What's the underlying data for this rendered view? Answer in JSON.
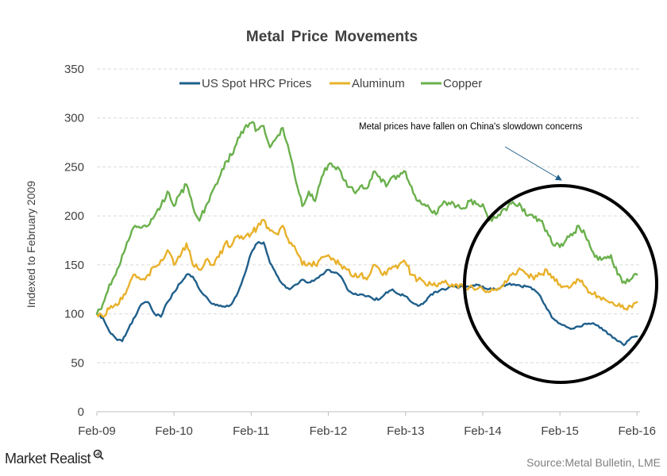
{
  "chart_data": {
    "type": "line",
    "title": "Metal Price Movements",
    "ylabel": "Indexed to February 2009",
    "xlabel": "",
    "ylim": [
      0,
      350
    ],
    "yticks": [
      0,
      50,
      100,
      150,
      200,
      250,
      300,
      350
    ],
    "xlim": [
      "2009-02-01",
      "2016-02-15"
    ],
    "xticks": [
      {
        "label": "Feb-09",
        "date": "2009-02-01"
      },
      {
        "label": "Feb-10",
        "date": "2010-02-01"
      },
      {
        "label": "Feb-11",
        "date": "2011-02-01"
      },
      {
        "label": "Feb-12",
        "date": "2012-02-01"
      },
      {
        "label": "Feb-13",
        "date": "2013-02-01"
      },
      {
        "label": "Feb-14",
        "date": "2014-02-01"
      },
      {
        "label": "Feb-15",
        "date": "2015-02-01"
      },
      {
        "label": "Feb-16",
        "date": "2016-02-01"
      }
    ],
    "grid": "horizontal-dashed",
    "legend_position": "top-center",
    "series": [
      {
        "name": "US Spot HRC Prices",
        "color": "#1f5f8b",
        "points": [
          [
            "2009-02-01",
            100
          ],
          [
            "2009-03-01",
            96
          ],
          [
            "2009-04-01",
            82
          ],
          [
            "2009-05-01",
            75
          ],
          [
            "2009-06-01",
            72
          ],
          [
            "2009-07-01",
            85
          ],
          [
            "2009-08-01",
            97
          ],
          [
            "2009-09-01",
            110
          ],
          [
            "2009-10-01",
            112
          ],
          [
            "2009-11-01",
            100
          ],
          [
            "2009-12-01",
            97
          ],
          [
            "2010-01-01",
            112
          ],
          [
            "2010-02-01",
            122
          ],
          [
            "2010-03-01",
            131
          ],
          [
            "2010-04-01",
            140
          ],
          [
            "2010-05-01",
            138
          ],
          [
            "2010-06-01",
            125
          ],
          [
            "2010-07-01",
            118
          ],
          [
            "2010-08-01",
            110
          ],
          [
            "2010-09-01",
            108
          ],
          [
            "2010-10-01",
            107
          ],
          [
            "2010-11-01",
            110
          ],
          [
            "2010-12-01",
            122
          ],
          [
            "2011-01-01",
            140
          ],
          [
            "2011-02-01",
            162
          ],
          [
            "2011-03-01",
            172
          ],
          [
            "2011-04-01",
            173
          ],
          [
            "2011-05-01",
            152
          ],
          [
            "2011-06-01",
            140
          ],
          [
            "2011-07-01",
            130
          ],
          [
            "2011-08-01",
            125
          ],
          [
            "2011-09-01",
            130
          ],
          [
            "2011-10-01",
            135
          ],
          [
            "2011-11-01",
            132
          ],
          [
            "2011-12-01",
            135
          ],
          [
            "2012-01-01",
            140
          ],
          [
            "2012-02-01",
            145
          ],
          [
            "2012-03-01",
            142
          ],
          [
            "2012-04-01",
            138
          ],
          [
            "2012-05-01",
            125
          ],
          [
            "2012-06-01",
            120
          ],
          [
            "2012-07-01",
            120
          ],
          [
            "2012-08-01",
            118
          ],
          [
            "2012-09-01",
            115
          ],
          [
            "2012-10-01",
            115
          ],
          [
            "2012-11-01",
            122
          ],
          [
            "2012-12-01",
            125
          ],
          [
            "2013-01-01",
            120
          ],
          [
            "2013-02-01",
            118
          ],
          [
            "2013-03-01",
            112
          ],
          [
            "2013-04-01",
            108
          ],
          [
            "2013-05-01",
            112
          ],
          [
            "2013-06-01",
            120
          ],
          [
            "2013-07-01",
            122
          ],
          [
            "2013-08-01",
            125
          ],
          [
            "2013-09-01",
            128
          ],
          [
            "2013-10-01",
            127
          ],
          [
            "2013-11-01",
            128
          ],
          [
            "2013-12-01",
            127
          ],
          [
            "2014-01-01",
            130
          ],
          [
            "2014-02-01",
            128
          ],
          [
            "2014-03-01",
            125
          ],
          [
            "2014-04-01",
            125
          ],
          [
            "2014-05-01",
            128
          ],
          [
            "2014-06-01",
            130
          ],
          [
            "2014-07-01",
            130
          ],
          [
            "2014-08-01",
            128
          ],
          [
            "2014-09-01",
            128
          ],
          [
            "2014-10-01",
            125
          ],
          [
            "2014-11-01",
            118
          ],
          [
            "2014-12-01",
            105
          ],
          [
            "2015-01-01",
            95
          ],
          [
            "2015-02-01",
            90
          ],
          [
            "2015-03-01",
            87
          ],
          [
            "2015-04-01",
            85
          ],
          [
            "2015-05-01",
            87
          ],
          [
            "2015-06-01",
            90
          ],
          [
            "2015-07-01",
            90
          ],
          [
            "2015-08-01",
            88
          ],
          [
            "2015-09-01",
            83
          ],
          [
            "2015-10-01",
            78
          ],
          [
            "2015-11-01",
            72
          ],
          [
            "2015-12-01",
            68
          ],
          [
            "2016-01-01",
            75
          ],
          [
            "2016-02-01",
            77
          ]
        ]
      },
      {
        "name": "Aluminum",
        "color": "#e8b12a",
        "points": [
          [
            "2009-02-01",
            100
          ],
          [
            "2009-03-01",
            97
          ],
          [
            "2009-04-01",
            105
          ],
          [
            "2009-05-01",
            110
          ],
          [
            "2009-06-01",
            115
          ],
          [
            "2009-07-01",
            128
          ],
          [
            "2009-08-01",
            140
          ],
          [
            "2009-09-01",
            135
          ],
          [
            "2009-10-01",
            140
          ],
          [
            "2009-11-01",
            148
          ],
          [
            "2009-12-01",
            155
          ],
          [
            "2010-01-01",
            165
          ],
          [
            "2010-02-01",
            150
          ],
          [
            "2010-03-01",
            158
          ],
          [
            "2010-04-01",
            172
          ],
          [
            "2010-05-01",
            150
          ],
          [
            "2010-06-01",
            145
          ],
          [
            "2010-07-01",
            155
          ],
          [
            "2010-08-01",
            150
          ],
          [
            "2010-09-01",
            158
          ],
          [
            "2010-10-01",
            172
          ],
          [
            "2010-11-01",
            170
          ],
          [
            "2010-12-01",
            180
          ],
          [
            "2011-01-01",
            178
          ],
          [
            "2011-02-01",
            182
          ],
          [
            "2011-03-01",
            188
          ],
          [
            "2011-04-01",
            196
          ],
          [
            "2011-05-01",
            185
          ],
          [
            "2011-06-01",
            182
          ],
          [
            "2011-07-01",
            190
          ],
          [
            "2011-08-01",
            172
          ],
          [
            "2011-09-01",
            165
          ],
          [
            "2011-10-01",
            150
          ],
          [
            "2011-11-01",
            152
          ],
          [
            "2011-12-01",
            150
          ],
          [
            "2012-01-01",
            158
          ],
          [
            "2012-02-01",
            160
          ],
          [
            "2012-03-01",
            155
          ],
          [
            "2012-04-01",
            150
          ],
          [
            "2012-05-01",
            145
          ],
          [
            "2012-06-01",
            138
          ],
          [
            "2012-07-01",
            140
          ],
          [
            "2012-08-01",
            135
          ],
          [
            "2012-09-01",
            150
          ],
          [
            "2012-10-01",
            145
          ],
          [
            "2012-11-01",
            140
          ],
          [
            "2012-12-01",
            148
          ],
          [
            "2013-01-01",
            150
          ],
          [
            "2013-02-01",
            152
          ],
          [
            "2013-03-01",
            140
          ],
          [
            "2013-04-01",
            135
          ],
          [
            "2013-05-01",
            132
          ],
          [
            "2013-06-01",
            130
          ],
          [
            "2013-07-01",
            128
          ],
          [
            "2013-08-01",
            132
          ],
          [
            "2013-09-01",
            128
          ],
          [
            "2013-10-01",
            130
          ],
          [
            "2013-11-01",
            127
          ],
          [
            "2013-12-01",
            128
          ],
          [
            "2014-01-01",
            125
          ],
          [
            "2014-02-01",
            125
          ],
          [
            "2014-03-01",
            122
          ],
          [
            "2014-04-01",
            125
          ],
          [
            "2014-05-01",
            128
          ],
          [
            "2014-06-01",
            135
          ],
          [
            "2014-07-01",
            140
          ],
          [
            "2014-08-01",
            145
          ],
          [
            "2014-09-01",
            140
          ],
          [
            "2014-10-01",
            135
          ],
          [
            "2014-11-01",
            140
          ],
          [
            "2014-12-01",
            145
          ],
          [
            "2015-01-01",
            138
          ],
          [
            "2015-02-01",
            130
          ],
          [
            "2015-03-01",
            128
          ],
          [
            "2015-04-01",
            130
          ],
          [
            "2015-05-01",
            135
          ],
          [
            "2015-06-01",
            128
          ],
          [
            "2015-07-01",
            120
          ],
          [
            "2015-08-01",
            118
          ],
          [
            "2015-09-01",
            115
          ],
          [
            "2015-10-01",
            112
          ],
          [
            "2015-11-01",
            108
          ],
          [
            "2015-12-01",
            105
          ],
          [
            "2016-01-01",
            108
          ],
          [
            "2016-02-01",
            112
          ]
        ]
      },
      {
        "name": "Copper",
        "color": "#6ab04c",
        "points": [
          [
            "2009-02-01",
            100
          ],
          [
            "2009-03-01",
            110
          ],
          [
            "2009-04-01",
            130
          ],
          [
            "2009-05-01",
            140
          ],
          [
            "2009-06-01",
            160
          ],
          [
            "2009-07-01",
            175
          ],
          [
            "2009-08-01",
            190
          ],
          [
            "2009-09-01",
            188
          ],
          [
            "2009-10-01",
            190
          ],
          [
            "2009-11-01",
            200
          ],
          [
            "2009-12-01",
            210
          ],
          [
            "2010-01-01",
            225
          ],
          [
            "2010-02-01",
            210
          ],
          [
            "2010-03-01",
            222
          ],
          [
            "2010-04-01",
            232
          ],
          [
            "2010-05-01",
            210
          ],
          [
            "2010-06-01",
            195
          ],
          [
            "2010-07-01",
            210
          ],
          [
            "2010-08-01",
            225
          ],
          [
            "2010-09-01",
            238
          ],
          [
            "2010-10-01",
            255
          ],
          [
            "2010-11-01",
            262
          ],
          [
            "2010-12-01",
            280
          ],
          [
            "2011-01-01",
            290
          ],
          [
            "2011-02-01",
            295
          ],
          [
            "2011-03-01",
            288
          ],
          [
            "2011-04-01",
            292
          ],
          [
            "2011-05-01",
            270
          ],
          [
            "2011-06-01",
            280
          ],
          [
            "2011-07-01",
            290
          ],
          [
            "2011-08-01",
            265
          ],
          [
            "2011-09-01",
            235
          ],
          [
            "2011-10-01",
            210
          ],
          [
            "2011-11-01",
            225
          ],
          [
            "2011-12-01",
            215
          ],
          [
            "2012-01-01",
            240
          ],
          [
            "2012-02-01",
            252
          ],
          [
            "2012-03-01",
            250
          ],
          [
            "2012-04-01",
            245
          ],
          [
            "2012-05-01",
            230
          ],
          [
            "2012-06-01",
            225
          ],
          [
            "2012-07-01",
            230
          ],
          [
            "2012-08-01",
            228
          ],
          [
            "2012-09-01",
            245
          ],
          [
            "2012-10-01",
            240
          ],
          [
            "2012-11-01",
            230
          ],
          [
            "2012-12-01",
            240
          ],
          [
            "2013-01-01",
            240
          ],
          [
            "2013-02-01",
            245
          ],
          [
            "2013-03-01",
            230
          ],
          [
            "2013-04-01",
            215
          ],
          [
            "2013-05-01",
            212
          ],
          [
            "2013-06-01",
            205
          ],
          [
            "2013-07-01",
            203
          ],
          [
            "2013-08-01",
            215
          ],
          [
            "2013-09-01",
            212
          ],
          [
            "2013-10-01",
            210
          ],
          [
            "2013-11-01",
            208
          ],
          [
            "2013-12-01",
            215
          ],
          [
            "2014-01-01",
            212
          ],
          [
            "2014-02-01",
            212
          ],
          [
            "2014-03-01",
            195
          ],
          [
            "2014-04-01",
            198
          ],
          [
            "2014-05-01",
            205
          ],
          [
            "2014-06-01",
            210
          ],
          [
            "2014-07-01",
            212
          ],
          [
            "2014-08-01",
            210
          ],
          [
            "2014-09-01",
            200
          ],
          [
            "2014-10-01",
            198
          ],
          [
            "2014-11-01",
            195
          ],
          [
            "2014-12-01",
            185
          ],
          [
            "2015-01-01",
            170
          ],
          [
            "2015-02-01",
            168
          ],
          [
            "2015-03-01",
            175
          ],
          [
            "2015-04-01",
            180
          ],
          [
            "2015-05-01",
            190
          ],
          [
            "2015-06-01",
            180
          ],
          [
            "2015-07-01",
            165
          ],
          [
            "2015-08-01",
            155
          ],
          [
            "2015-09-01",
            158
          ],
          [
            "2015-10-01",
            160
          ],
          [
            "2015-11-01",
            140
          ],
          [
            "2015-12-01",
            133
          ],
          [
            "2016-01-01",
            135
          ],
          [
            "2016-02-01",
            140
          ]
        ]
      }
    ],
    "annotations": [
      {
        "text": "Metal prices have fallen on China's slowdown concerns",
        "shape": "ellipse-with-arrow"
      }
    ]
  },
  "footer": {
    "brand": "Market Realist",
    "source": "Source:Metal  Bulletin,  LME"
  }
}
